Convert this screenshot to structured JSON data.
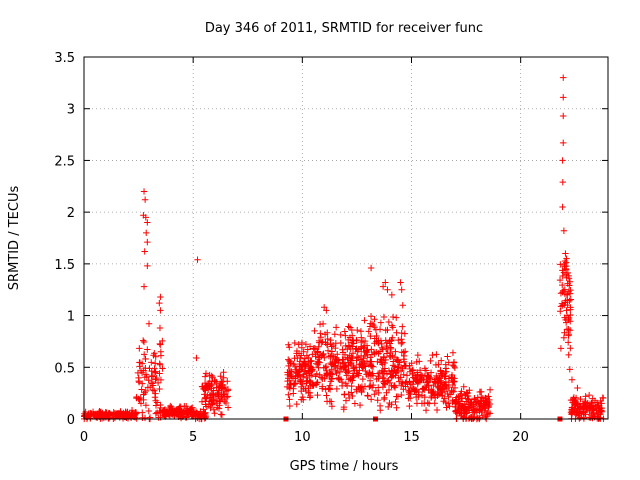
{
  "chart_data": {
    "type": "scatter",
    "title": "Day 346 of 2011, SRMTID for receiver func",
    "xlabel": "GPS time / hours",
    "ylabel": "SRMTID / TECUs",
    "xlim": [
      0,
      24
    ],
    "ylim": [
      0,
      3.5
    ],
    "xticks": [
      "0",
      "5",
      "10",
      "15",
      "20"
    ],
    "yticks": [
      "0",
      "0.5",
      "1",
      "1.5",
      "2",
      "2.5",
      "3",
      "3.5"
    ],
    "grid": true,
    "marker": "+",
    "color": "#ff0000",
    "segments": [
      {
        "x0": 0.0,
        "x1": 2.4,
        "base": 0.04,
        "spread": 0.05,
        "n": 180
      },
      {
        "x0": 2.4,
        "x1": 3.6,
        "base": 0.35,
        "spread": 0.6,
        "n": 90
      },
      {
        "x0": 3.6,
        "x1": 5.0,
        "base": 0.06,
        "spread": 0.08,
        "n": 120
      },
      {
        "x0": 5.0,
        "x1": 5.6,
        "base": 0.04,
        "spread": 0.05,
        "n": 40
      },
      {
        "x0": 5.4,
        "x1": 6.6,
        "base": 0.25,
        "spread": 0.25,
        "n": 110
      },
      {
        "x0": 9.3,
        "x1": 10.5,
        "base": 0.45,
        "spread": 0.35,
        "n": 140
      },
      {
        "x0": 10.5,
        "x1": 12.8,
        "base": 0.5,
        "spread": 0.45,
        "n": 240
      },
      {
        "x0": 12.8,
        "x1": 14.8,
        "base": 0.55,
        "spread": 0.55,
        "n": 210
      },
      {
        "x0": 14.8,
        "x1": 17.0,
        "base": 0.35,
        "spread": 0.3,
        "n": 200
      },
      {
        "x0": 17.0,
        "x1": 18.6,
        "base": 0.12,
        "spread": 0.22,
        "n": 160
      },
      {
        "x0": 21.8,
        "x1": 22.3,
        "base": 1.2,
        "spread": 0.6,
        "n": 60
      },
      {
        "x0": 22.3,
        "x1": 23.8,
        "base": 0.1,
        "spread": 0.15,
        "n": 130
      }
    ],
    "points": [
      [
        2.75,
        2.2
      ],
      [
        2.8,
        2.12
      ],
      [
        2.72,
        1.97
      ],
      [
        2.83,
        1.95
      ],
      [
        2.9,
        1.9
      ],
      [
        2.85,
        1.8
      ],
      [
        2.9,
        1.71
      ],
      [
        2.78,
        1.62
      ],
      [
        2.9,
        1.48
      ],
      [
        2.75,
        1.28
      ],
      [
        3.5,
        1.18
      ],
      [
        3.45,
        1.12
      ],
      [
        3.5,
        1.05
      ],
      [
        3.48,
        0.88
      ],
      [
        3.52,
        0.65
      ],
      [
        5.2,
        1.54
      ],
      [
        5.15,
        0.59
      ],
      [
        11.0,
        1.08
      ],
      [
        11.1,
        1.05
      ],
      [
        10.95,
        0.92
      ],
      [
        13.15,
        1.46
      ],
      [
        13.8,
        1.32
      ],
      [
        13.7,
        1.28
      ],
      [
        13.9,
        1.25
      ],
      [
        14.1,
        1.2
      ],
      [
        14.5,
        1.32
      ],
      [
        14.55,
        1.25
      ],
      [
        14.6,
        1.1
      ],
      [
        14.3,
        0.98
      ],
      [
        16.9,
        0.64
      ],
      [
        16.95,
        0.55
      ],
      [
        21.95,
        3.3
      ],
      [
        21.95,
        3.11
      ],
      [
        21.95,
        2.93
      ],
      [
        21.95,
        2.67
      ],
      [
        21.92,
        2.5
      ],
      [
        21.93,
        2.29
      ],
      [
        21.92,
        2.05
      ],
      [
        21.98,
        1.82
      ],
      [
        22.05,
        1.6
      ],
      [
        22.1,
        1.55
      ],
      [
        22.0,
        1.48
      ],
      [
        22.08,
        1.4
      ],
      [
        22.12,
        1.2
      ],
      [
        22.1,
        1.05
      ],
      [
        22.2,
        0.82
      ],
      [
        22.2,
        0.62
      ],
      [
        22.25,
        0.48
      ],
      [
        22.35,
        0.38
      ],
      [
        22.6,
        0.3
      ]
    ],
    "isolated_points": [
      [
        9.25,
        0.0
      ],
      [
        13.35,
        0.0
      ],
      [
        21.8,
        0.0
      ]
    ]
  }
}
